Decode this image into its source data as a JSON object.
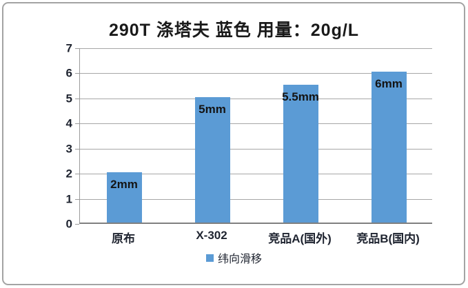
{
  "chart_data": {
    "type": "bar",
    "title": "290T 涤塔夫 蓝色  用量：20g/L",
    "categories": [
      "原布",
      "X-302",
      "竞品A(国外)",
      "竞品B(国内)"
    ],
    "series": [
      {
        "name": "纬向滑移",
        "values": [
          2,
          5,
          5.5,
          6
        ]
      }
    ],
    "data_labels": [
      "2mm",
      "5mm",
      "5.5mm",
      "6mm"
    ],
    "xlabel": "",
    "ylabel": "",
    "ylim": [
      0,
      7
    ],
    "ytick_step": 1,
    "grid": true,
    "legend_position": "bottom",
    "label_position": "inside-end"
  },
  "legend": {
    "label": "纬向滑移"
  },
  "colors": {
    "bar": "#5B9BD5",
    "gridline": "#A6A6A6",
    "axis": "#9A9A9A",
    "zero_axis": "#7F7F7F",
    "text": "#1F2430",
    "frame_border": "#A3A3A3",
    "background": "#FFFFFF"
  }
}
